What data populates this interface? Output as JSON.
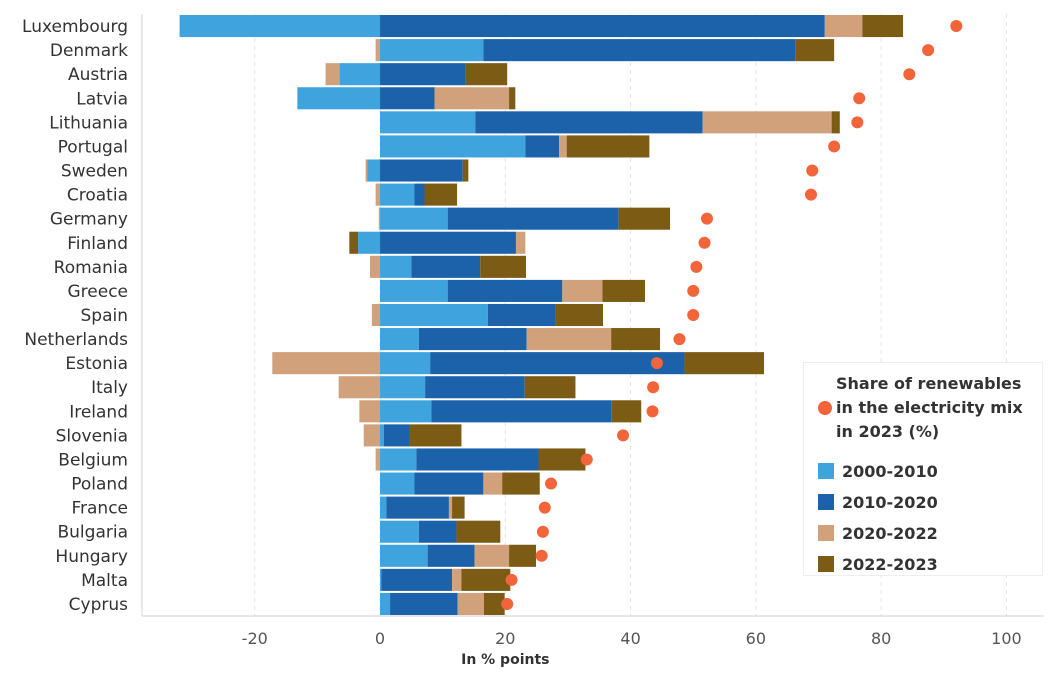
{
  "chart_data": {
    "type": "bar",
    "subtype": "horizontal-stacked-diverging-with-dot-markers",
    "categories": [
      "Luxembourg",
      "Denmark",
      "Austria",
      "Latvia",
      "Lithuania",
      "Portugal",
      "Sweden",
      "Croatia",
      "Germany",
      "Finland",
      "Romania",
      "Greece",
      "Spain",
      "Netherlands",
      "Estonia",
      "Italy",
      "Ireland",
      "Slovenia",
      "Belgium",
      "Poland",
      "France",
      "Bulgaria",
      "Hungary",
      "Malta",
      "Cyprus"
    ],
    "series": [
      {
        "name": "2000-2010",
        "color": "#3fa4de",
        "values": [
          -32,
          16.5,
          -6.5,
          -13.2,
          15.2,
          23.2,
          -2,
          5.5,
          10.8,
          -3.5,
          5,
          10.8,
          17.2,
          6.2,
          8,
          7.2,
          8.2,
          0.6,
          5.8,
          5.5,
          1,
          6.2,
          7.6,
          0.2,
          1.6
        ]
      },
      {
        "name": "2010-2020",
        "color": "#1b62ab",
        "values": [
          71,
          49.8,
          13.7,
          8.7,
          36.3,
          5.4,
          13.2,
          1.6,
          27.3,
          21.7,
          11,
          18.3,
          10.8,
          17.2,
          40.6,
          15.9,
          28.7,
          4.1,
          19.5,
          11,
          10,
          6,
          7.5,
          11.3,
          10.8
        ]
      },
      {
        "name": "2020-2022",
        "color": "#d1a17c",
        "values": [
          6,
          -0.7,
          -2.2,
          11.9,
          20.6,
          1.2,
          -0.3,
          -0.7,
          -0.2,
          1.5,
          -1.6,
          6.4,
          -1.3,
          13.5,
          -17.2,
          -6.6,
          -3.3,
          -2.6,
          -0.7,
          3,
          0.5,
          0,
          5.5,
          1.5,
          4.2
        ]
      },
      {
        "name": "2022-2023",
        "color": "#7c5b14",
        "values": [
          6.5,
          6.2,
          6.6,
          1,
          1.3,
          13.2,
          0.9,
          5.2,
          8.2,
          -1.4,
          7.3,
          6.8,
          7.6,
          7.8,
          12.7,
          8.1,
          4.8,
          8.3,
          7.5,
          6,
          2,
          7,
          4.3,
          7.8,
          3.3
        ]
      }
    ],
    "markers": {
      "name": "Share of renewables in the electricity mix in 2023 (%)",
      "color": "#f2643a",
      "values": [
        92,
        87.5,
        84.5,
        76.5,
        76.2,
        72.5,
        69,
        68.8,
        52.2,
        51.8,
        50.5,
        50,
        50,
        47.8,
        44.2,
        43.6,
        43.5,
        38.8,
        33,
        27.3,
        26.3,
        26,
        25.8,
        21,
        20.3
      ]
    },
    "xlabel": "In % points",
    "xlim": [
      -38,
      106
    ],
    "xticks": [
      -20,
      0,
      20,
      40,
      60,
      80,
      100
    ],
    "xtick_labels": [
      "-20",
      "0",
      "20",
      "40",
      "60",
      "80",
      "100"
    ],
    "grid": "vertical",
    "legend": {
      "position": "bottom-right",
      "marker_label": "Share of renewables in the electricity mix in 2023 (%)",
      "marker_label_lines": [
        "Share of renewables",
        "in the electricity mix",
        "in 2023 (%)"
      ],
      "items": [
        {
          "label": "2000-2010",
          "color": "#3fa4de"
        },
        {
          "label": "2010-2020",
          "color": "#1b62ab"
        },
        {
          "label": "2020-2022",
          "color": "#d1a17c"
        },
        {
          "label": "2022-2023",
          "color": "#7c5b14"
        }
      ]
    }
  }
}
